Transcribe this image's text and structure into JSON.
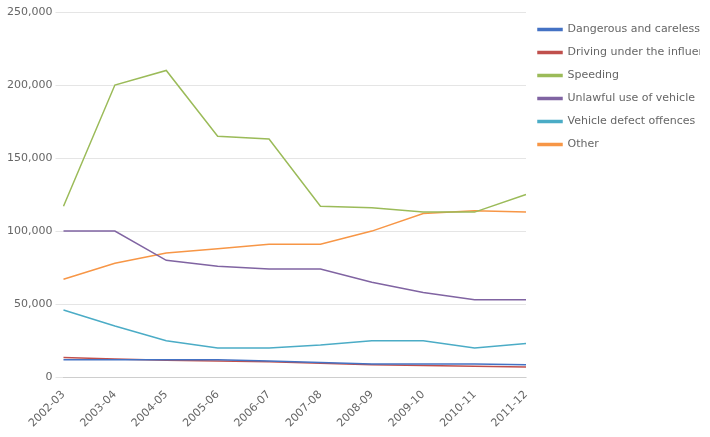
{
  "chart_data": {
    "type": "line",
    "categories": [
      "2002-03",
      "2003-04",
      "2004-05",
      "2005-06",
      "2006-07",
      "2007-08",
      "2008-09",
      "2009-10",
      "2010-11",
      "2011-12"
    ],
    "series": [
      {
        "name": "Dangerous and careless driving",
        "color": "#4472c4",
        "values": [
          12000,
          12000,
          12000,
          12000,
          11000,
          10000,
          9000,
          9000,
          9000,
          8500
        ]
      },
      {
        "name": "Driving under the influence",
        "color": "#c0504d",
        "values": [
          13500,
          12500,
          11500,
          11000,
          10500,
          9500,
          8500,
          8000,
          7500,
          7000
        ]
      },
      {
        "name": "Speeding",
        "color": "#9bbb59",
        "values": [
          117000,
          200000,
          210000,
          165000,
          163000,
          117000,
          116000,
          113000,
          113000,
          125000
        ]
      },
      {
        "name": "Unlawful use of vehicle",
        "color": "#8064a2",
        "values": [
          100000,
          100000,
          80000,
          76000,
          74000,
          74000,
          65000,
          58000,
          53000,
          53000
        ]
      },
      {
        "name": "Vehicle defect offences",
        "color": "#4bacc6",
        "values": [
          46000,
          35000,
          25000,
          20000,
          20000,
          22000,
          25000,
          25000,
          20000,
          23000
        ]
      },
      {
        "name": "Other",
        "color": "#f79646",
        "values": [
          67000,
          78000,
          85000,
          88000,
          91000,
          91000,
          100000,
          112000,
          114000,
          113000
        ]
      }
    ],
    "ylim": [
      0,
      250000
    ],
    "yticks": [
      0,
      {
        "value": 50000,
        "label": "50,000"
      },
      {
        "value": 100000,
        "label": "100,000"
      },
      {
        "value": 150000,
        "label": "150,000"
      },
      {
        "value": 200000,
        "label": "200,000"
      },
      {
        "value": 250000,
        "label": "250,000"
      }
    ],
    "grid": true,
    "legend": "right"
  }
}
